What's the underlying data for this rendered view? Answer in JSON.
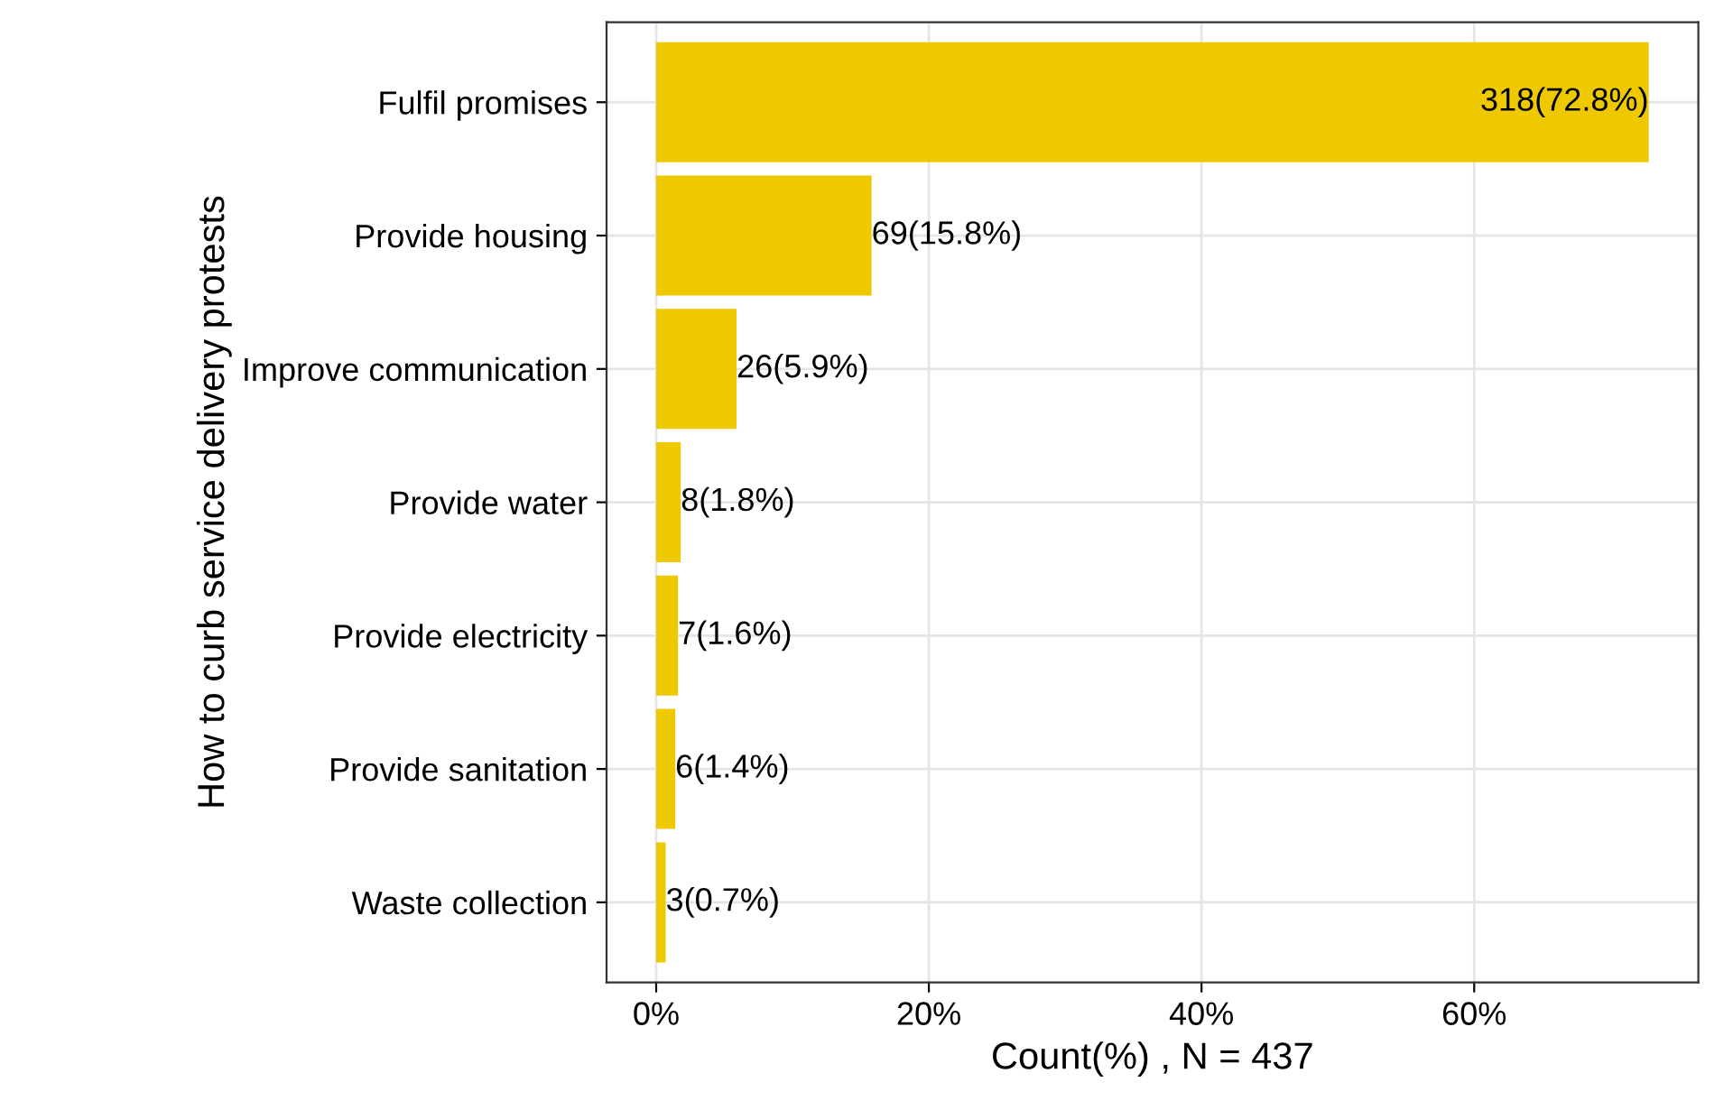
{
  "chart_data": {
    "type": "bar",
    "orientation": "horizontal",
    "xlabel": "Count(%) , N = 437",
    "ylabel": "How to curb service delivery protests",
    "categories": [
      "Fulfil promises",
      "Provide housing",
      "Improve communication",
      "Provide water",
      "Provide electricity",
      "Provide sanitation",
      "Waste collection"
    ],
    "values": [
      72.8,
      15.8,
      5.9,
      1.8,
      1.6,
      1.4,
      0.7
    ],
    "value_labels": [
      "318(72.8%)",
      "69(15.8%)",
      "26(5.9%)",
      "8(1.8%)",
      "7(1.6%)",
      "6(1.4%)",
      "3(0.7%)"
    ],
    "color": "#eec900",
    "xlim": [
      -3.64,
      76.44
    ],
    "xticks": [
      {
        "value": 0,
        "label": "0%"
      },
      {
        "value": 20,
        "label": "20%"
      },
      {
        "value": 40,
        "label": "40%"
      },
      {
        "value": 60,
        "label": "60%"
      }
    ],
    "grid": true,
    "legend": false
  }
}
